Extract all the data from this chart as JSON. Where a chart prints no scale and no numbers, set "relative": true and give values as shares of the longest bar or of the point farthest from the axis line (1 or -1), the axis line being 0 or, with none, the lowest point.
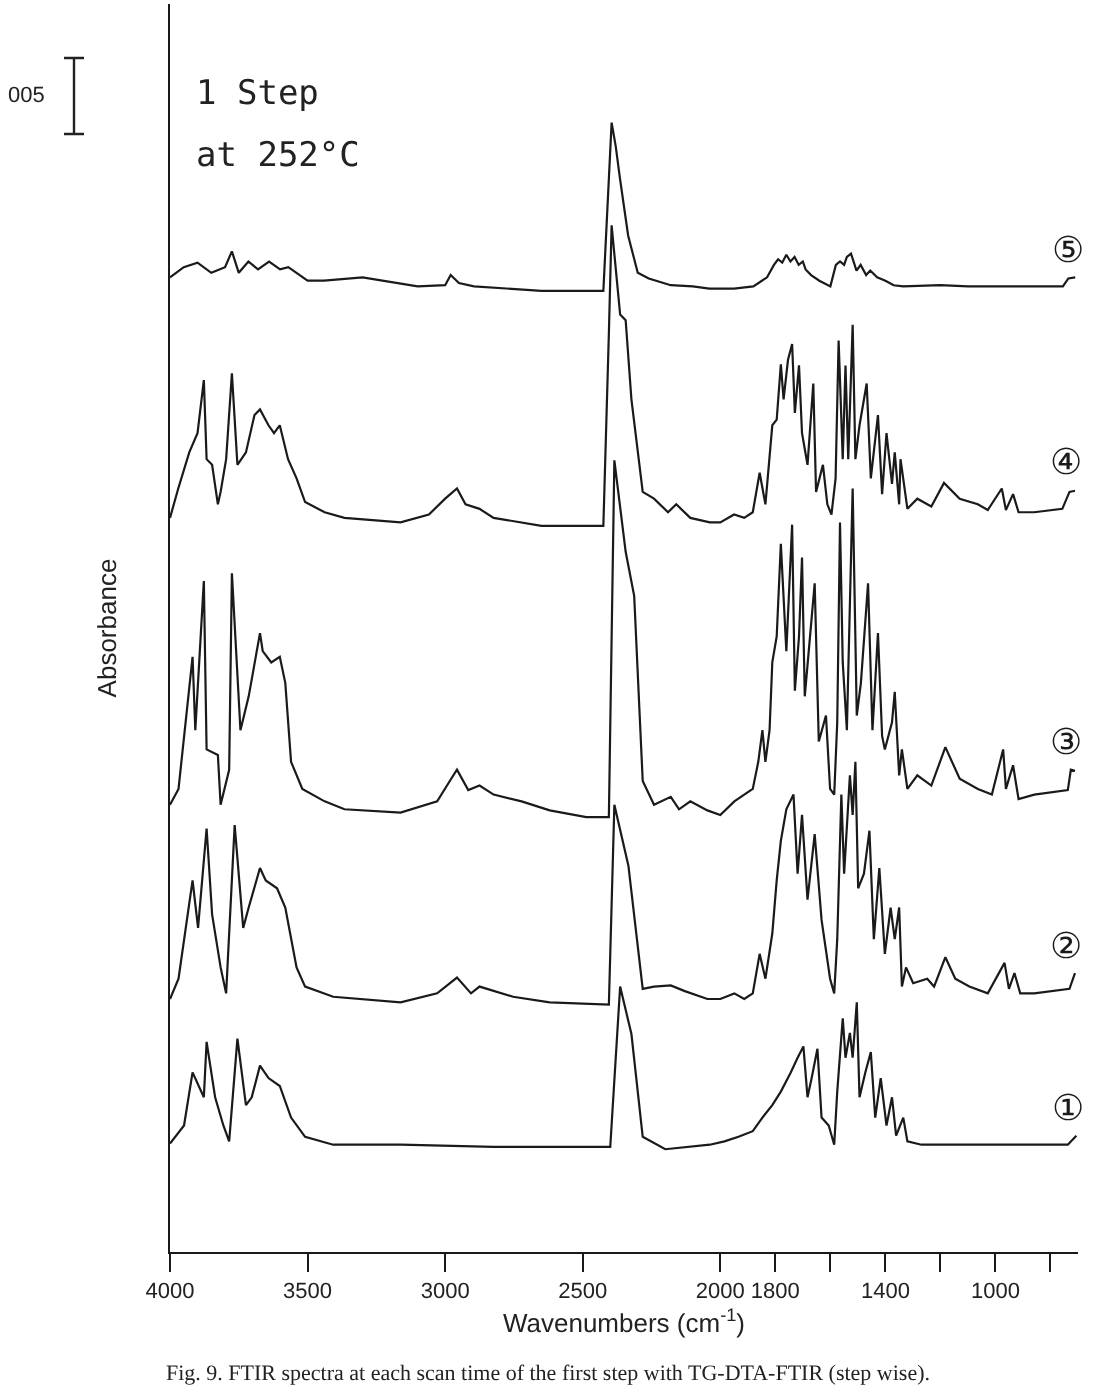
{
  "chart_data": {
    "type": "line",
    "relative": true,
    "xlabel": "Wavenumbers (cm$^{-1}$)",
    "ylabel": "Absorbance",
    "annotations": [
      "005",
      "1 Step",
      "at 252°C",
      "Fig. 9. FTIR spectra at each scan time of the first step with TG-DTA-FTIR (step wise)."
    ],
    "xlim": [
      4000,
      700
    ],
    "xticks": [
      4000,
      3500,
      3000,
      2500,
      2000,
      1800,
      {
        "value": 1600,
        "label": null
      },
      1400,
      {
        "value": 1200,
        "label": null
      },
      1000,
      {
        "value": 800,
        "label": null
      }
    ],
    "legend": false,
    "series": [
      {
        "name": "⑤",
        "color": "#1a1a1a",
        "x": [
          4000,
          3950,
          3900,
          3850,
          3800,
          3775,
          3750,
          3715,
          3680,
          3640,
          3600,
          3570,
          3500,
          3440,
          3300,
          3100,
          3000,
          2980,
          2950,
          2895,
          2650,
          2425,
          2395,
          2380,
          2365,
          2335,
          2300,
          2260,
          2180,
          2100,
          2040,
          1950,
          1880,
          1830,
          1805,
          1790,
          1775,
          1760,
          1745,
          1730,
          1715,
          1700,
          1690,
          1670,
          1640,
          1600,
          1580,
          1565,
          1550,
          1540,
          1525,
          1505,
          1490,
          1470,
          1455,
          1430,
          1400,
          1370,
          1335,
          1200,
          1100,
          1000,
          860,
          755,
          735,
          710
        ],
        "values": [
          0.863,
          0.872,
          0.876,
          0.867,
          0.872,
          0.886,
          0.867,
          0.877,
          0.87,
          0.877,
          0.87,
          0.872,
          0.86,
          0.86,
          0.863,
          0.855,
          0.856,
          0.865,
          0.858,
          0.855,
          0.851,
          0.851,
          1.0,
          0.979,
          0.951,
          0.9,
          0.867,
          0.862,
          0.856,
          0.855,
          0.853,
          0.853,
          0.855,
          0.863,
          0.874,
          0.879,
          0.876,
          0.883,
          0.877,
          0.881,
          0.874,
          0.877,
          0.87,
          0.865,
          0.86,
          0.855,
          0.874,
          0.877,
          0.874,
          0.881,
          0.884,
          0.869,
          0.874,
          0.865,
          0.869,
          0.863,
          0.86,
          0.856,
          0.855,
          0.856,
          0.855,
          0.855,
          0.855,
          0.855,
          0.862,
          0.863
        ]
      },
      {
        "name": "④",
        "color": "#1a1a1a",
        "x": [
          4000,
          3970,
          3930,
          3900,
          3877,
          3867,
          3847,
          3826,
          3816,
          3796,
          3775,
          3755,
          3724,
          3693,
          3673,
          3642,
          3622,
          3601,
          3571,
          3540,
          3509,
          3438,
          3366,
          3162,
          3059,
          3000,
          2957,
          2926,
          2875,
          2824,
          2650,
          2425,
          2405,
          2395,
          2364,
          2344,
          2323,
          2282,
          2241,
          2190,
          2160,
          2109,
          2038,
          2000,
          1950,
          1913,
          1882,
          1857,
          1836,
          1811,
          1795,
          1780,
          1770,
          1754,
          1739,
          1729,
          1714,
          1703,
          1683,
          1662,
          1652,
          1627,
          1611,
          1596,
          1581,
          1570,
          1555,
          1545,
          1535,
          1519,
          1509,
          1494,
          1468,
          1453,
          1427,
          1412,
          1396,
          1376,
          1366,
          1350,
          1345,
          1320,
          1284,
          1233,
          1187,
          1130,
          1064,
          1028,
          977,
          962,
          936,
          916,
          859,
          757,
          731,
          711
        ],
        "values": [
          0.65,
          0.676,
          0.708,
          0.725,
          0.772,
          0.702,
          0.697,
          0.662,
          0.673,
          0.702,
          0.778,
          0.697,
          0.708,
          0.741,
          0.746,
          0.732,
          0.725,
          0.732,
          0.702,
          0.685,
          0.664,
          0.655,
          0.65,
          0.646,
          0.653,
          0.667,
          0.676,
          0.662,
          0.658,
          0.65,
          0.643,
          0.643,
          0.813,
          0.909,
          0.83,
          0.825,
          0.755,
          0.673,
          0.667,
          0.655,
          0.662,
          0.65,
          0.646,
          0.646,
          0.653,
          0.65,
          0.655,
          0.69,
          0.662,
          0.732,
          0.737,
          0.786,
          0.755,
          0.79,
          0.804,
          0.743,
          0.785,
          0.725,
          0.697,
          0.769,
          0.673,
          0.697,
          0.662,
          0.653,
          0.685,
          0.807,
          0.702,
          0.785,
          0.702,
          0.821,
          0.702,
          0.732,
          0.769,
          0.685,
          0.741,
          0.671,
          0.725,
          0.68,
          0.708,
          0.662,
          0.702,
          0.658,
          0.667,
          0.66,
          0.681,
          0.667,
          0.662,
          0.657,
          0.676,
          0.657,
          0.671,
          0.655,
          0.655,
          0.658,
          0.673,
          0.674
        ]
      },
      {
        "name": "③",
        "color": "#1a1a1a",
        "x": [
          4000,
          3969,
          3918,
          3908,
          3877,
          3867,
          3826,
          3816,
          3785,
          3775,
          3744,
          3714,
          3673,
          3663,
          3632,
          3601,
          3581,
          3560,
          3519,
          3438,
          3366,
          3162,
          3029,
          2978,
          2957,
          2916,
          2875,
          2824,
          2722,
          2620,
          2487,
          2405,
          2385,
          2344,
          2313,
          2282,
          2241,
          2180,
          2150,
          2109,
          2047,
          2000,
          1949,
          1913,
          1882,
          1862,
          1847,
          1836,
          1821,
          1811,
          1795,
          1780,
          1760,
          1739,
          1729,
          1714,
          1703,
          1693,
          1657,
          1642,
          1616,
          1601,
          1586,
          1575,
          1565,
          1555,
          1540,
          1519,
          1504,
          1489,
          1463,
          1447,
          1427,
          1412,
          1402,
          1376,
          1366,
          1350,
          1340,
          1320,
          1284,
          1233,
          1182,
          1130,
          1064,
          1013,
          972,
          962,
          936,
          916,
          859,
          737,
          726,
          711
        ],
        "values": [
          0.396,
          0.41,
          0.527,
          0.462,
          0.594,
          0.445,
          0.44,
          0.396,
          0.427,
          0.601,
          0.462,
          0.492,
          0.548,
          0.532,
          0.522,
          0.527,
          0.504,
          0.434,
          0.41,
          0.399,
          0.392,
          0.389,
          0.399,
          0.419,
          0.427,
          0.409,
          0.413,
          0.405,
          0.399,
          0.391,
          0.385,
          0.385,
          0.701,
          0.62,
          0.581,
          0.417,
          0.396,
          0.403,
          0.392,
          0.399,
          0.391,
          0.387,
          0.399,
          0.405,
          0.41,
          0.434,
          0.462,
          0.434,
          0.462,
          0.522,
          0.545,
          0.627,
          0.532,
          0.644,
          0.497,
          0.545,
          0.615,
          0.492,
          0.592,
          0.452,
          0.475,
          0.41,
          0.405,
          0.469,
          0.646,
          0.522,
          0.462,
          0.676,
          0.475,
          0.504,
          0.592,
          0.462,
          0.548,
          0.457,
          0.445,
          0.469,
          0.496,
          0.422,
          0.445,
          0.41,
          0.422,
          0.413,
          0.447,
          0.419,
          0.41,
          0.405,
          0.445,
          0.41,
          0.431,
          0.401,
          0.405,
          0.409,
          0.427,
          0.426
        ]
      },
      {
        "name": "②",
        "color": "#1a1a1a",
        "x": [
          4000,
          3969,
          3918,
          3898,
          3867,
          3847,
          3816,
          3796,
          3765,
          3734,
          3714,
          3673,
          3652,
          3611,
          3581,
          3540,
          3509,
          3407,
          3162,
          3029,
          2957,
          2906,
          2875,
          2753,
          2620,
          2405,
          2385,
          2334,
          2282,
          2241,
          2180,
          2129,
          2047,
          2000,
          1949,
          1913,
          1882,
          1857,
          1836,
          1811,
          1795,
          1780,
          1760,
          1734,
          1719,
          1703,
          1683,
          1657,
          1632,
          1601,
          1586,
          1575,
          1560,
          1550,
          1529,
          1519,
          1509,
          1499,
          1478,
          1458,
          1442,
          1422,
          1402,
          1381,
          1366,
          1350,
          1340,
          1325,
          1299,
          1248,
          1223,
          1182,
          1146,
          1095,
          1028,
          967,
          951,
          931,
          910,
          859,
          731,
          711
        ],
        "values": [
          0.224,
          0.242,
          0.329,
          0.287,
          0.375,
          0.299,
          0.252,
          0.229,
          0.378,
          0.287,
          0.305,
          0.34,
          0.329,
          0.322,
          0.305,
          0.252,
          0.235,
          0.226,
          0.221,
          0.229,
          0.243,
          0.229,
          0.235,
          0.226,
          0.221,
          0.219,
          0.396,
          0.342,
          0.233,
          0.235,
          0.236,
          0.231,
          0.224,
          0.224,
          0.229,
          0.224,
          0.229,
          0.264,
          0.242,
          0.282,
          0.329,
          0.364,
          0.392,
          0.405,
          0.335,
          0.387,
          0.312,
          0.37,
          0.294,
          0.242,
          0.229,
          0.277,
          0.405,
          0.335,
          0.422,
          0.387,
          0.434,
          0.322,
          0.335,
          0.373,
          0.277,
          0.34,
          0.264,
          0.305,
          0.277,
          0.305,
          0.235,
          0.252,
          0.238,
          0.242,
          0.235,
          0.261,
          0.242,
          0.235,
          0.229,
          0.256,
          0.233,
          0.247,
          0.229,
          0.229,
          0.233,
          0.247
        ]
      },
      {
        "name": "①",
        "color": "#1a1a1a",
        "x": [
          4000,
          3949,
          3918,
          3877,
          3867,
          3836,
          3806,
          3785,
          3755,
          3724,
          3703,
          3673,
          3642,
          3601,
          3560,
          3509,
          3407,
          3162,
          2824,
          2487,
          2400,
          2364,
          2323,
          2282,
          2200,
          2038,
          1985,
          1934,
          1882,
          1847,
          1811,
          1780,
          1744,
          1719,
          1698,
          1683,
          1668,
          1647,
          1632,
          1606,
          1586,
          1575,
          1555,
          1545,
          1529,
          1519,
          1504,
          1494,
          1473,
          1453,
          1437,
          1417,
          1396,
          1376,
          1361,
          1335,
          1320,
          1269,
          1197,
          859,
          737,
          706
        ],
        "values": [
          0.096,
          0.112,
          0.159,
          0.137,
          0.186,
          0.137,
          0.112,
          0.098,
          0.189,
          0.13,
          0.137,
          0.165,
          0.154,
          0.147,
          0.119,
          0.102,
          0.095,
          0.095,
          0.093,
          0.093,
          0.093,
          0.235,
          0.193,
          0.102,
          0.091,
          0.095,
          0.098,
          0.102,
          0.107,
          0.119,
          0.13,
          0.142,
          0.159,
          0.172,
          0.182,
          0.137,
          0.154,
          0.18,
          0.119,
          0.112,
          0.095,
          0.142,
          0.207,
          0.172,
          0.194,
          0.172,
          0.221,
          0.137,
          0.159,
          0.177,
          0.119,
          0.154,
          0.112,
          0.137,
          0.103,
          0.119,
          0.098,
          0.095,
          0.095,
          0.095,
          0.095,
          0.103
        ]
      }
    ]
  }
}
